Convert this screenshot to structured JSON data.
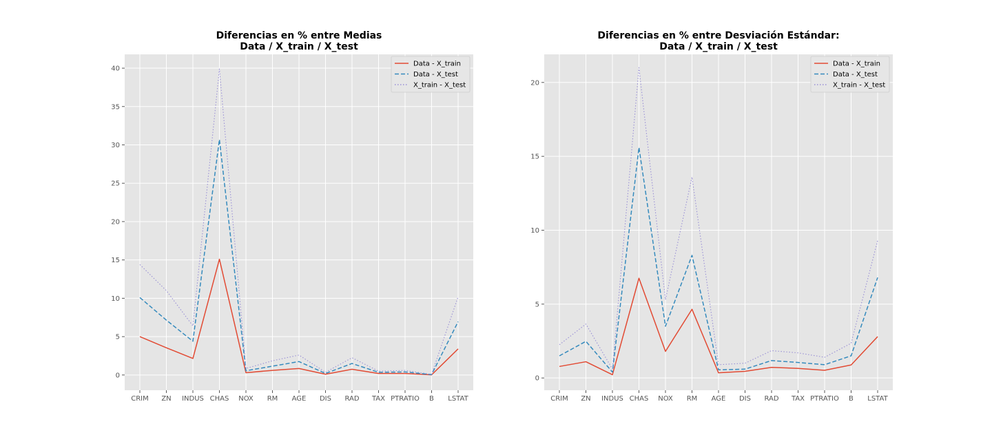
{
  "categories": [
    "CRIM",
    "ZN",
    "INDUS",
    "CHAS",
    "NOX",
    "RM",
    "AGE",
    "DIS",
    "RAD",
    "TAX",
    "PTRATIO",
    "B",
    "LSTAT"
  ],
  "colors": {
    "background": "#e5e5e5",
    "grid": "#ffffff",
    "series": [
      "#e24a33",
      "#348abd",
      "#988ed5"
    ]
  },
  "chart_data": [
    {
      "type": "line",
      "title_lines": [
        "Diferencias en % entre Medias",
        "Data / X_train / X_test"
      ],
      "categories": [
        "CRIM",
        "ZN",
        "INDUS",
        "CHAS",
        "NOX",
        "RM",
        "AGE",
        "DIS",
        "RAD",
        "TAX",
        "PTRATIO",
        "B",
        "LSTAT"
      ],
      "ylim": [
        -1.99,
        41.8
      ],
      "yticks": [
        0,
        5,
        10,
        15,
        20,
        25,
        30,
        35,
        40
      ],
      "grid": true,
      "legend": "top-right",
      "series": [
        {
          "name": "Data - X_train",
          "style": "solid",
          "values": [
            5.0,
            3.55,
            2.15,
            15.1,
            0.3,
            0.6,
            0.85,
            0.1,
            0.75,
            0.2,
            0.2,
            0.02,
            3.4
          ]
        },
        {
          "name": "Data - X_test",
          "style": "dashed",
          "values": [
            10.1,
            7.15,
            4.4,
            30.7,
            0.55,
            1.15,
            1.75,
            0.2,
            1.5,
            0.35,
            0.4,
            0.05,
            6.95
          ]
        },
        {
          "name": "X_train - X_test",
          "style": "dotted",
          "values": [
            14.4,
            11.0,
            6.4,
            39.9,
            0.85,
            1.85,
            2.6,
            0.35,
            2.25,
            0.5,
            0.6,
            0.08,
            10.2
          ]
        }
      ]
    },
    {
      "type": "line",
      "title_lines": [
        "Diferencias en % entre Desviación Estándar:",
        "Data / X_train / X_test"
      ],
      "categories": [
        "CRIM",
        "ZN",
        "INDUS",
        "CHAS",
        "NOX",
        "RM",
        "AGE",
        "DIS",
        "RAD",
        "TAX",
        "PTRATIO",
        "B",
        "LSTAT"
      ],
      "ylim": [
        -0.83,
        21.9
      ],
      "yticks": [
        0,
        5,
        10,
        15,
        20
      ],
      "grid": true,
      "legend": "top-right",
      "series": [
        {
          "name": "Data - X_train",
          "style": "solid",
          "values": [
            0.78,
            1.1,
            0.22,
            6.75,
            1.8,
            4.65,
            0.35,
            0.45,
            0.72,
            0.65,
            0.52,
            0.88,
            2.8
          ]
        },
        {
          "name": "Data - X_test",
          "style": "dashed",
          "values": [
            1.5,
            2.48,
            0.4,
            15.6,
            3.5,
            8.3,
            0.55,
            0.6,
            1.18,
            1.05,
            0.9,
            1.5,
            6.8
          ]
        },
        {
          "name": "X_train - X_test",
          "style": "dotted",
          "values": [
            2.25,
            3.65,
            0.6,
            21.0,
            5.3,
            13.6,
            0.9,
            1.0,
            1.85,
            1.7,
            1.4,
            2.35,
            9.3
          ]
        }
      ]
    }
  ]
}
